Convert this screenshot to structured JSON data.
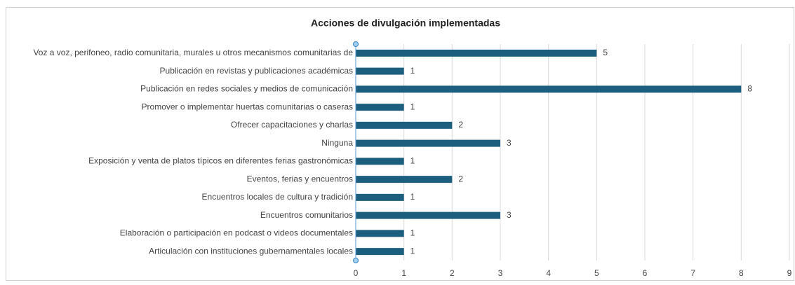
{
  "chart_data": {
    "type": "bar",
    "orientation": "horizontal",
    "title": "Acciones de divulgación implementadas",
    "categories": [
      "Voz a voz, perifoneo, radio comunitaria, murales u otros mecanismos comunitarias de",
      "Publicación en revistas y publicaciones académicas",
      "Publicación en redes sociales y medios de comunicación",
      "Promover o implementar huertas comunitarias o caseras",
      "Ofrecer capacitaciones y charlas",
      "Ninguna",
      "Exposición y venta de platos típicos en diferentes ferias gastronómicas",
      "Eventos, ferias y encuentros",
      "Encuentros locales de cultura y tradición",
      "Encuentros comunitarios",
      "Elaboración o participación en podcast o videos documentales",
      "Articulación con instituciones gubernamentales locales"
    ],
    "values": [
      5,
      1,
      8,
      1,
      2,
      3,
      1,
      2,
      1,
      3,
      1,
      1
    ],
    "color": "#1b5e7e",
    "xlim": [
      0,
      9
    ],
    "xticks": [
      0,
      1,
      2,
      3,
      4,
      5,
      6,
      7,
      8,
      9
    ],
    "grid": true
  }
}
